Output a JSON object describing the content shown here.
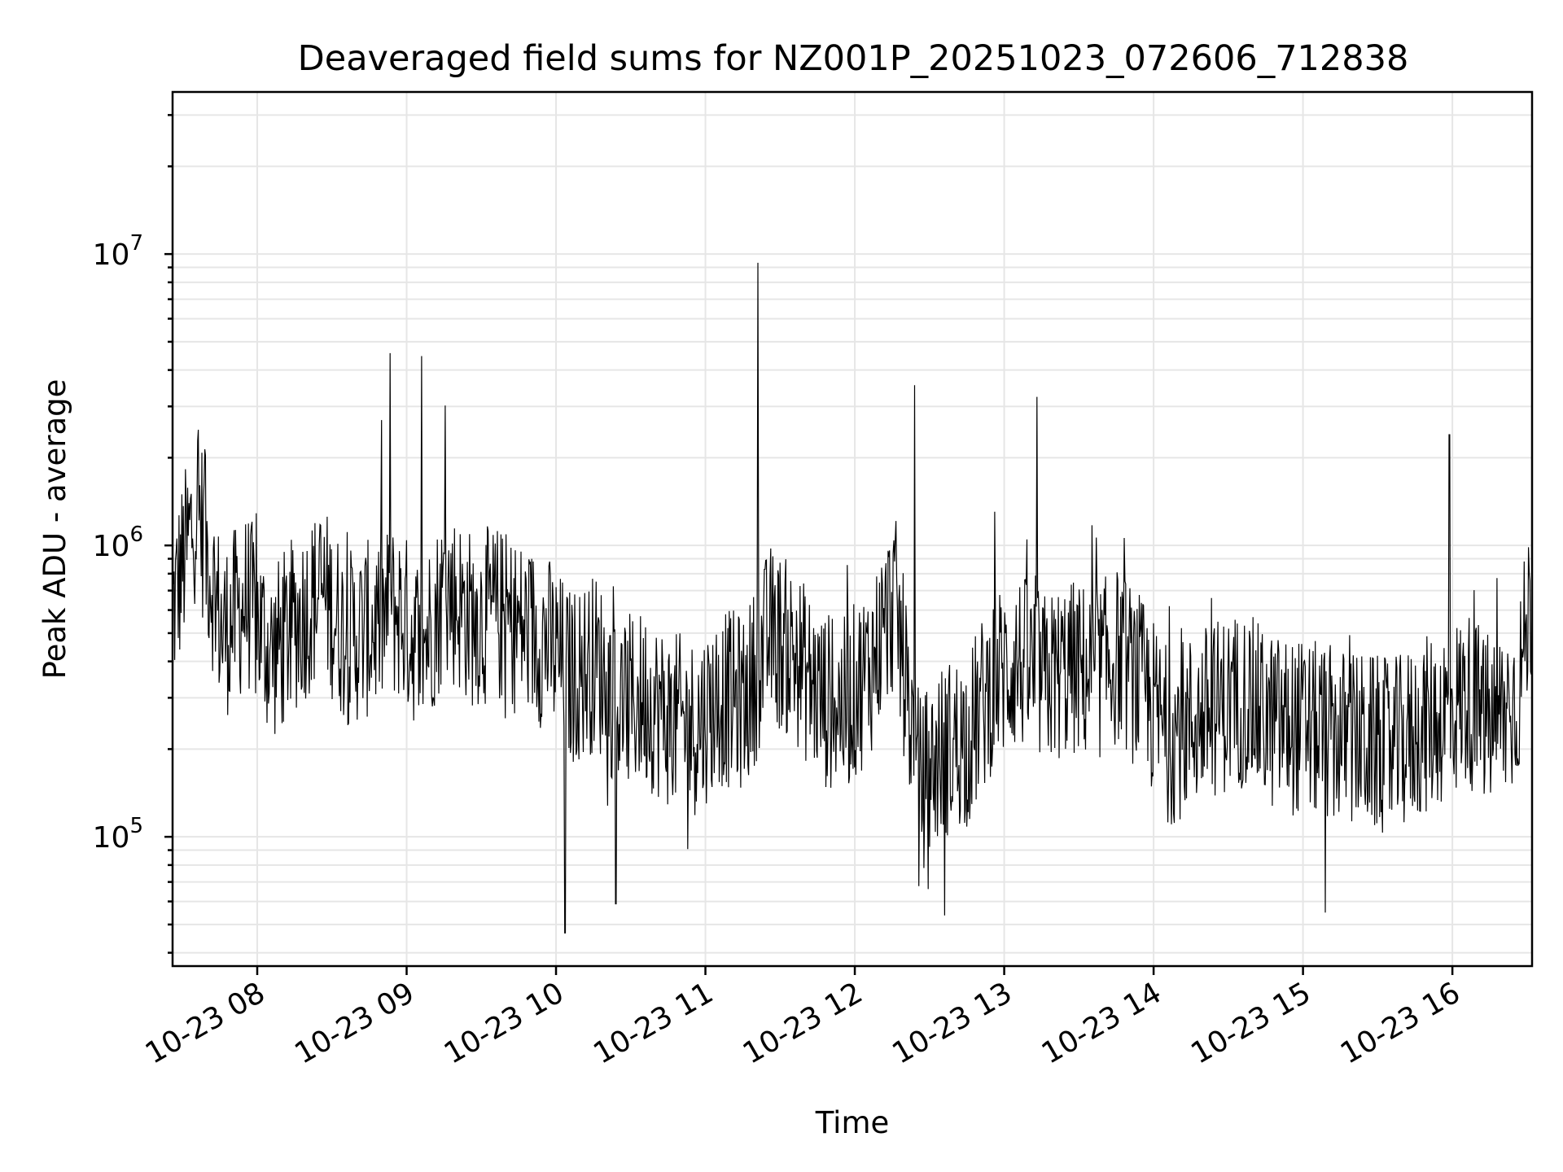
{
  "chart_data": {
    "type": "line",
    "title": "Deaveraged field sums for NZ001P_20251023_072606_712838",
    "xlabel": "Time",
    "ylabel": "Peak ADU - average",
    "yscale": "log",
    "ylim": [
      36000,
      36000000
    ],
    "xlim": [
      "2025-10-23 07:26",
      "2025-10-23 16:32"
    ],
    "x_ticks": [
      "10-23 08",
      "10-23 09",
      "10-23 10",
      "10-23 11",
      "10-23 12",
      "10-23 13",
      "10-23 14",
      "10-23 15",
      "10-23 16"
    ],
    "y_ticks": [
      {
        "value": 100000,
        "base": "10",
        "exp": "5"
      },
      {
        "value": 1000000,
        "base": "10",
        "exp": "6"
      },
      {
        "value": 10000000,
        "base": "10",
        "exp": "7"
      }
    ],
    "grid": true,
    "line_color": "#000000",
    "series": [
      {
        "x": [
          "2025-10-23 07:26",
          "2025-10-23 07:36",
          "2025-10-23 07:46",
          "2025-10-23 07:56",
          "2025-10-23 08:06",
          "2025-10-23 08:16",
          "2025-10-23 08:26",
          "2025-10-23 08:36",
          "2025-10-23 08:46",
          "2025-10-23 08:56",
          "2025-10-23 09:06",
          "2025-10-23 09:16",
          "2025-10-23 09:26",
          "2025-10-23 09:36",
          "2025-10-23 09:46",
          "2025-10-23 09:56",
          "2025-10-23 10:06",
          "2025-10-23 10:16",
          "2025-10-23 10:26",
          "2025-10-23 10:36",
          "2025-10-23 10:46",
          "2025-10-23 10:56",
          "2025-10-23 11:06",
          "2025-10-23 11:16",
          "2025-10-23 11:26",
          "2025-10-23 11:36",
          "2025-10-23 11:46",
          "2025-10-23 11:56",
          "2025-10-23 12:06",
          "2025-10-23 12:16",
          "2025-10-23 12:26",
          "2025-10-23 12:36",
          "2025-10-23 12:46",
          "2025-10-23 12:56",
          "2025-10-23 13:06",
          "2025-10-23 13:16",
          "2025-10-23 13:26",
          "2025-10-23 13:36",
          "2025-10-23 13:46",
          "2025-10-23 13:56",
          "2025-10-23 14:06",
          "2025-10-23 14:16",
          "2025-10-23 14:26",
          "2025-10-23 14:36",
          "2025-10-23 14:46",
          "2025-10-23 14:56",
          "2025-10-23 15:06",
          "2025-10-23 15:16",
          "2025-10-23 15:26",
          "2025-10-23 15:36",
          "2025-10-23 15:46",
          "2025-10-23 15:56",
          "2025-10-23 16:06",
          "2025-10-23 16:16",
          "2025-10-23 16:26",
          "2025-10-23 16:32"
        ],
        "values": [
          600000,
          1400000,
          500000,
          650000,
          420000,
          550000,
          700000,
          480000,
          520000,
          600000,
          450000,
          700000,
          560000,
          580000,
          520000,
          470000,
          350000,
          400000,
          280000,
          300000,
          250000,
          240000,
          300000,
          290000,
          500000,
          420000,
          300000,
          280000,
          380000,
          650000,
          150000,
          200000,
          220000,
          350000,
          400000,
          340000,
          380000,
          360000,
          420000,
          320000,
          220000,
          250000,
          280000,
          300000,
          250000,
          240000,
          230000,
          220000,
          210000,
          200000,
          230000,
          260000,
          300000,
          240000,
          300000,
          700000
        ]
      }
    ]
  }
}
